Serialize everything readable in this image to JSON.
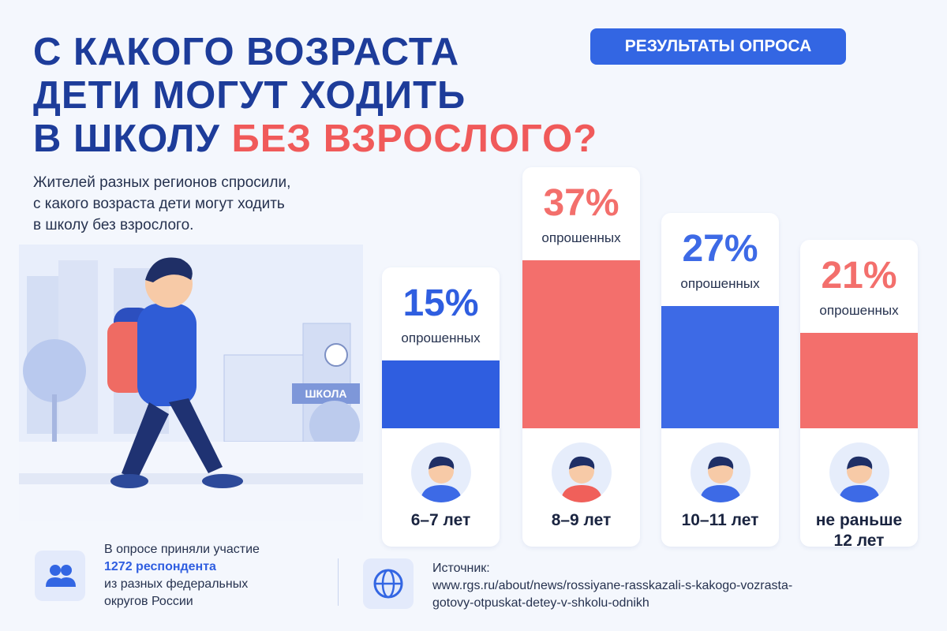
{
  "header": {
    "title_lines": [
      "С КАКОГО ВОЗРАСТА",
      "ДЕТИ МОГУТ ХОДИТЬ",
      "В ШКОЛУ"
    ],
    "title_highlight": "БЕЗ ВЗРОСЛОГО?",
    "badge": "РЕЗУЛЬТАТЫ ОПРОСА",
    "subtitle_lines": [
      "Жителей разных регионов спросили,",
      "с какого возраста дети могут ходить",
      "в школу без взрослого."
    ]
  },
  "illustration_sign": "ШКОЛА",
  "chart_data": {
    "type": "bar",
    "categories": [
      "6–7 лет",
      "8–9 лет",
      "10–11 лет",
      "не раньше 12 лет"
    ],
    "values": [
      15,
      37,
      27,
      21
    ],
    "value_labels": [
      "15%",
      "37%",
      "27%",
      "21%"
    ],
    "value_captions": [
      "опрошенных",
      "опрошенных",
      "опрошенных",
      "опрошенных"
    ],
    "colors": [
      "#2f5ee0",
      "#f36f6c",
      "#3d6ae6",
      "#f36f6c"
    ]
  },
  "footer": {
    "participants_lines": [
      "В опросе приняли участие",
      "1272 респондента",
      "из разных федеральных",
      "округов России"
    ],
    "source_label": "Источник:",
    "source_lines": [
      "www.rgs.ru/about/news/rossiyane-rasskazali-s-kakogo-vozrasta-",
      "gotovy-otpuskat-detey-v-shkolu-odnikh"
    ]
  }
}
